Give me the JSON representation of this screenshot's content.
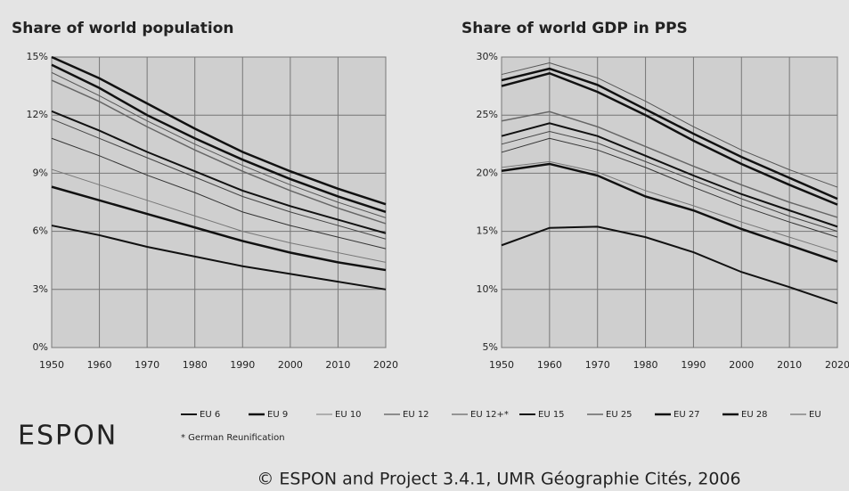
{
  "chart_data": [
    {
      "type": "line",
      "title": "Share of world population",
      "x": [
        1950,
        1960,
        1970,
        1980,
        1990,
        2000,
        2010,
        2020
      ],
      "xlim": [
        1950,
        2020
      ],
      "xticks": [
        1950,
        1960,
        1970,
        1980,
        1990,
        2000,
        2010,
        2020
      ],
      "ylim": [
        0,
        15
      ],
      "yticks": [
        {
          "value": 0,
          "label": "0%"
        },
        {
          "value": 3,
          "label": "3%"
        },
        {
          "value": 6,
          "label": "6%"
        },
        {
          "value": 9,
          "label": "9%"
        },
        {
          "value": 12,
          "label": "12%"
        },
        {
          "value": 15,
          "label": "15%"
        }
      ],
      "grid": true,
      "series": [
        {
          "name": "EU 6",
          "color": "#111111",
          "width": 2,
          "values": [
            6.3,
            5.8,
            5.2,
            4.7,
            4.2,
            3.8,
            3.4,
            3.0
          ]
        },
        {
          "name": "EU 9",
          "color": "#111111",
          "width": 2.5,
          "values": [
            8.3,
            7.6,
            6.9,
            6.2,
            5.5,
            4.9,
            4.4,
            4.0
          ]
        },
        {
          "name": "EU 10",
          "color": "#777777",
          "width": 1,
          "values": [
            9.2,
            8.4,
            7.6,
            6.8,
            6.0,
            5.4,
            4.9,
            4.4
          ]
        },
        {
          "name": "EU 12",
          "color": "#333333",
          "width": 1,
          "values": [
            10.8,
            9.9,
            8.9,
            8.0,
            7.0,
            6.3,
            5.7,
            5.1
          ]
        },
        {
          "name": "EU 12+*",
          "color": "#444444",
          "width": 1,
          "values": [
            11.8,
            10.8,
            9.8,
            8.8,
            7.8,
            7.0,
            6.3,
            5.6
          ]
        },
        {
          "name": "EU 15",
          "color": "#111111",
          "width": 2,
          "values": [
            12.2,
            11.2,
            10.1,
            9.1,
            8.1,
            7.3,
            6.6,
            5.9
          ]
        },
        {
          "name": "EU 25",
          "color": "#666666",
          "width": 1.5,
          "values": [
            13.8,
            12.7,
            11.4,
            10.2,
            9.1,
            8.1,
            7.2,
            6.4
          ]
        },
        {
          "name": "EU 27",
          "color": "#111111",
          "width": 2.5,
          "values": [
            14.6,
            13.4,
            12.0,
            10.8,
            9.7,
            8.7,
            7.8,
            7.0
          ]
        },
        {
          "name": "EU 28",
          "color": "#111111",
          "width": 2.5,
          "values": [
            15.0,
            13.9,
            12.6,
            11.3,
            10.1,
            9.1,
            8.2,
            7.4
          ]
        },
        {
          "name": "EU",
          "color": "#555555",
          "width": 1,
          "values": [
            14.2,
            13.0,
            11.7,
            10.5,
            9.4,
            8.4,
            7.5,
            6.7
          ]
        }
      ]
    },
    {
      "type": "line",
      "title": "Share of world GDP in PPS",
      "x": [
        1950,
        1960,
        1970,
        1980,
        1990,
        2000,
        2010,
        2020
      ],
      "xlim": [
        1950,
        2020
      ],
      "xticks": [
        1950,
        1960,
        1970,
        1980,
        1990,
        2000,
        2010,
        2020
      ],
      "ylim": [
        5,
        30
      ],
      "yticks": [
        {
          "value": 5,
          "label": "5%"
        },
        {
          "value": 10,
          "label": "10%"
        },
        {
          "value": 15,
          "label": "15%"
        },
        {
          "value": 20,
          "label": "20%"
        },
        {
          "value": 25,
          "label": "25%"
        },
        {
          "value": 30,
          "label": "30%"
        }
      ],
      "grid": true,
      "series": [
        {
          "name": "EU 6",
          "color": "#111111",
          "width": 2,
          "values": [
            13.8,
            15.3,
            15.4,
            14.5,
            13.2,
            11.5,
            10.2,
            8.8
          ]
        },
        {
          "name": "EU 9",
          "color": "#111111",
          "width": 2.5,
          "values": [
            20.2,
            20.8,
            19.8,
            18.0,
            16.8,
            15.2,
            13.8,
            12.4
          ]
        },
        {
          "name": "EU 10",
          "color": "#777777",
          "width": 1,
          "values": [
            20.5,
            21.0,
            20.1,
            18.5,
            17.2,
            15.8,
            14.5,
            13.2
          ]
        },
        {
          "name": "EU 12",
          "color": "#333333",
          "width": 1,
          "values": [
            21.8,
            23.0,
            22.0,
            20.5,
            18.8,
            17.2,
            15.8,
            14.5
          ]
        },
        {
          "name": "EU 12+*",
          "color": "#444444",
          "width": 1,
          "values": [
            22.5,
            23.6,
            22.6,
            21.0,
            19.4,
            17.8,
            16.3,
            15.0
          ]
        },
        {
          "name": "EU 15",
          "color": "#111111",
          "width": 2,
          "values": [
            23.2,
            24.3,
            23.2,
            21.5,
            19.8,
            18.2,
            16.8,
            15.4
          ]
        },
        {
          "name": "EU 25",
          "color": "#666666",
          "width": 1.5,
          "values": [
            24.5,
            25.3,
            24.0,
            22.3,
            20.6,
            19.0,
            17.5,
            16.2
          ]
        },
        {
          "name": "EU 27",
          "color": "#111111",
          "width": 2.5,
          "values": [
            27.5,
            28.6,
            27.0,
            25.0,
            22.8,
            20.8,
            19.0,
            17.3
          ]
        },
        {
          "name": "EU 28",
          "color": "#111111",
          "width": 2.5,
          "values": [
            28.0,
            29.0,
            27.6,
            25.5,
            23.4,
            21.4,
            19.6,
            17.8
          ]
        },
        {
          "name": "EU",
          "color": "#555555",
          "width": 1,
          "values": [
            28.5,
            29.5,
            28.2,
            26.2,
            24.0,
            22.0,
            20.3,
            18.8
          ]
        }
      ]
    }
  ],
  "footnote": "* German Reunification",
  "source": "© ESPON and Project 3.4.1, UMR Géographie Cités, 2006",
  "logo": "ESPON"
}
